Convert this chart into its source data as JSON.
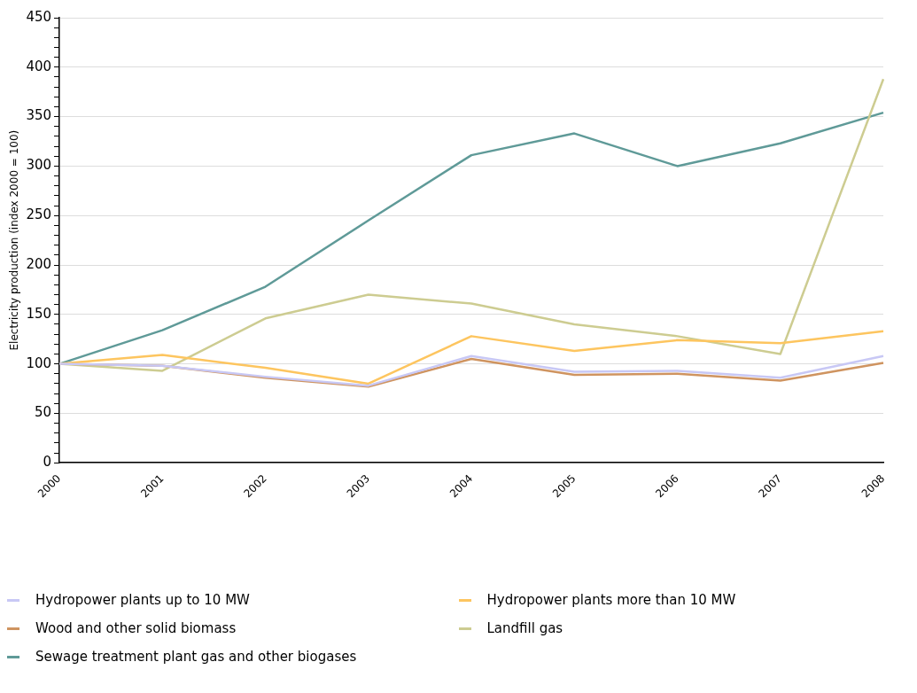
{
  "chart_data": {
    "type": "line",
    "ylabel": "Electricity production (index 2000 = 100)",
    "categories": [
      "2000",
      "2001",
      "2002",
      "2003",
      "2004",
      "2005",
      "2006",
      "2007",
      "2008"
    ],
    "series": [
      {
        "name": "Hydropower plants up to 10 MW",
        "color": "#c8c8f5",
        "values": [
          100,
          98,
          87,
          78,
          108,
          92,
          93,
          86,
          108
        ]
      },
      {
        "name": "Hydropower plants more than 10 MW",
        "color": "#fdc55f",
        "values": [
          100,
          109,
          96,
          80,
          128,
          113,
          124,
          121,
          133
        ]
      },
      {
        "name": "Wood and other solid biomass",
        "color": "#cf9460",
        "values": [
          100,
          98,
          86,
          77,
          105,
          89,
          90,
          83,
          101
        ]
      },
      {
        "name": "Landfill gas",
        "color": "#cdcc91",
        "values": [
          100,
          93,
          146,
          170,
          161,
          140,
          128,
          110,
          388
        ]
      },
      {
        "name": "Sewage treatment plant gas and other biogases",
        "color": "#5f9a98",
        "values": [
          100,
          134,
          178,
          245,
          311,
          333,
          300,
          323,
          354
        ]
      }
    ],
    "ylim": [
      0,
      450
    ],
    "yticks": [
      0,
      {
        "value": 10,
        "label": null
      },
      {
        "value": 20,
        "label": null
      },
      {
        "value": 30,
        "label": null
      },
      {
        "value": 40,
        "label": null
      },
      50,
      {
        "value": 60,
        "label": null
      },
      {
        "value": 70,
        "label": null
      },
      {
        "value": 80,
        "label": null
      },
      {
        "value": 90,
        "label": null
      },
      100,
      {
        "value": 110,
        "label": null
      },
      {
        "value": 120,
        "label": null
      },
      {
        "value": 130,
        "label": null
      },
      {
        "value": 140,
        "label": null
      },
      150,
      {
        "value": 160,
        "label": null
      },
      {
        "value": 170,
        "label": null
      },
      {
        "value": 180,
        "label": null
      },
      {
        "value": 190,
        "label": null
      },
      200,
      {
        "value": 210,
        "label": null
      },
      {
        "value": 220,
        "label": null
      },
      {
        "value": 230,
        "label": null
      },
      {
        "value": 240,
        "label": null
      },
      250,
      {
        "value": 260,
        "label": null
      },
      {
        "value": 270,
        "label": null
      },
      {
        "value": 280,
        "label": null
      },
      {
        "value": 290,
        "label": null
      },
      300,
      {
        "value": 310,
        "label": null
      },
      {
        "value": 320,
        "label": null
      },
      {
        "value": 330,
        "label": null
      },
      {
        "value": 340,
        "label": null
      },
      350,
      {
        "value": 360,
        "label": null
      },
      {
        "value": 370,
        "label": null
      },
      {
        "value": 380,
        "label": null
      },
      {
        "value": 390,
        "label": null
      },
      400,
      {
        "value": 410,
        "label": null
      },
      {
        "value": 420,
        "label": null
      },
      {
        "value": 430,
        "label": null
      },
      {
        "value": 440,
        "label": null
      },
      450
    ],
    "grid": "y",
    "legend": "bottom",
    "marker": "none",
    "line_style": "solid"
  }
}
